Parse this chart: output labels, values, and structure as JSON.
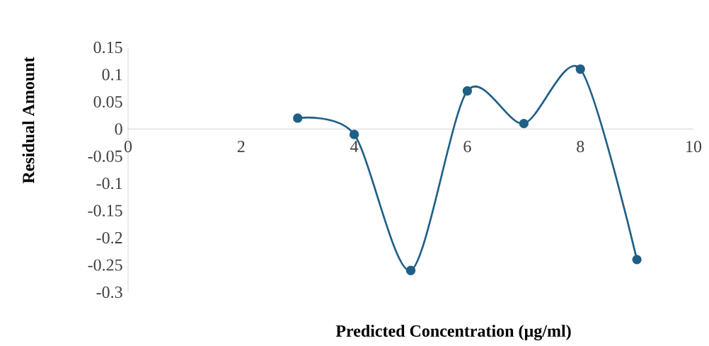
{
  "chart_data": {
    "type": "line",
    "xlabel": "Predicted Concentration (µg/ml)",
    "ylabel": "Residual Amount",
    "x": [
      3,
      4,
      5,
      6,
      7,
      8,
      9
    ],
    "values": [
      0.02,
      -0.01,
      -0.26,
      0.07,
      0.01,
      0.11,
      -0.24
    ],
    "color": "#1f5f86",
    "marker": "circle",
    "xlim": [
      0,
      10
    ],
    "ylim": [
      -0.3,
      0.15
    ],
    "xticks": [
      0,
      2,
      4,
      6,
      8,
      10
    ],
    "yticks": [
      -0.3,
      -0.25,
      -0.2,
      -0.15,
      -0.1,
      -0.05,
      0,
      0.05,
      0.1,
      0.15
    ]
  }
}
